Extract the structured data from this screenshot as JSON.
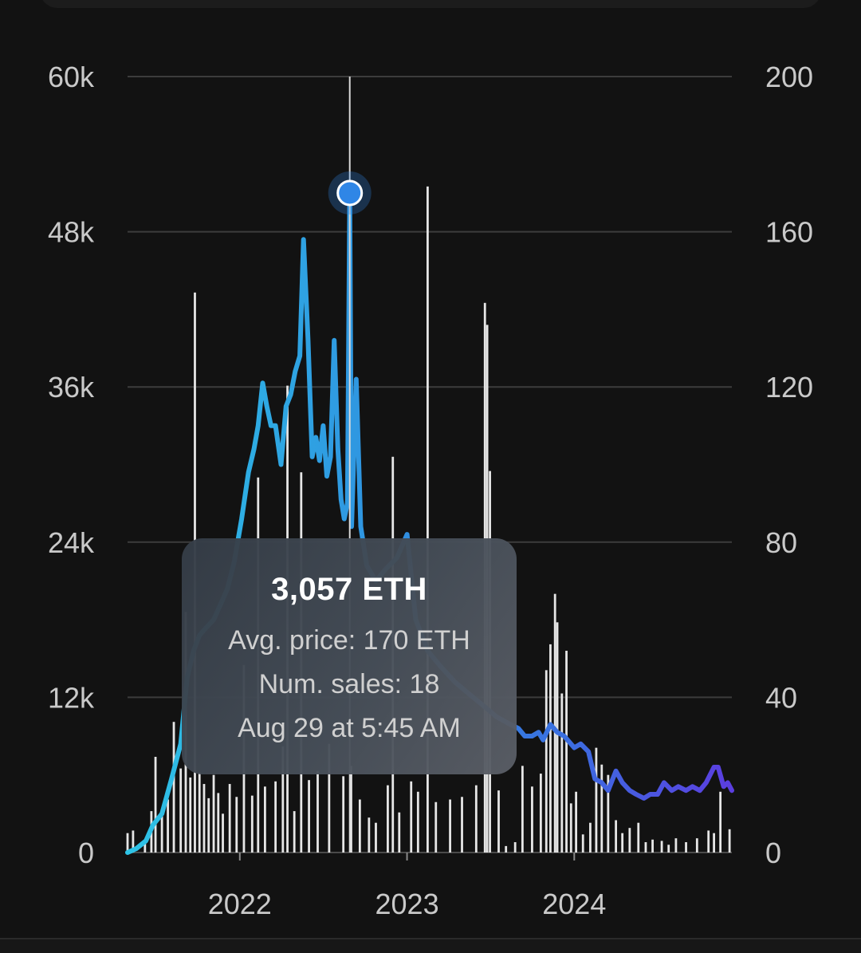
{
  "chart_data": {
    "type": "line",
    "title": "",
    "xlabel": "",
    "ylabel": "",
    "x_range": [
      "2021-05-01",
      "2024-12-10"
    ],
    "x_ticks": [
      {
        "label": "2022",
        "date": "2022-01-01"
      },
      {
        "label": "2023",
        "date": "2023-01-01"
      },
      {
        "label": "2024",
        "date": "2024-01-01"
      }
    ],
    "y_left": {
      "ticks": [
        "0",
        "12k",
        "24k",
        "36k",
        "48k",
        "60k"
      ],
      "ylim": [
        0,
        60000
      ]
    },
    "y_right": {
      "ticks": [
        "0",
        "40",
        "80",
        "120",
        "160",
        "200"
      ],
      "ylim": [
        0,
        200
      ]
    },
    "grid": true,
    "legend": "none",
    "colors": {
      "background": "#121212",
      "grid": "#3c3c3c",
      "bars": "#e6e6e6",
      "line_start": "#2ec4e6",
      "line_mid": "#2f8fe0",
      "line_end": "#5b3ee0",
      "highlight": "#2f86e6"
    },
    "series": [
      {
        "type": "line",
        "axis": "right",
        "points": [
          [
            "2021-05-01",
            0
          ],
          [
            "2021-05-20",
            1
          ],
          [
            "2021-06-10",
            3
          ],
          [
            "2021-06-25",
            7
          ],
          [
            "2021-07-15",
            10
          ],
          [
            "2021-08-05",
            19
          ],
          [
            "2021-08-25",
            28
          ],
          [
            "2021-09-08",
            45
          ],
          [
            "2021-09-22",
            52
          ],
          [
            "2021-10-05",
            56
          ],
          [
            "2021-10-20",
            58
          ],
          [
            "2021-11-05",
            60
          ],
          [
            "2021-11-20",
            64
          ],
          [
            "2021-12-05",
            68
          ],
          [
            "2021-12-20",
            75
          ],
          [
            "2022-01-05",
            86
          ],
          [
            "2022-01-20",
            98
          ],
          [
            "2022-02-01",
            104
          ],
          [
            "2022-02-10",
            110
          ],
          [
            "2022-02-20",
            121
          ],
          [
            "2022-03-01",
            115
          ],
          [
            "2022-03-10",
            110
          ],
          [
            "2022-03-20",
            110
          ],
          [
            "2022-04-01",
            100
          ],
          [
            "2022-04-12",
            115
          ],
          [
            "2022-04-22",
            118
          ],
          [
            "2022-05-02",
            124
          ],
          [
            "2022-05-12",
            128
          ],
          [
            "2022-05-20",
            158
          ],
          [
            "2022-05-30",
            132
          ],
          [
            "2022-06-08",
            102
          ],
          [
            "2022-06-16",
            107
          ],
          [
            "2022-06-24",
            101
          ],
          [
            "2022-07-02",
            110
          ],
          [
            "2022-07-10",
            97
          ],
          [
            "2022-07-18",
            102
          ],
          [
            "2022-07-26",
            132
          ],
          [
            "2022-08-03",
            104
          ],
          [
            "2022-08-10",
            91
          ],
          [
            "2022-08-17",
            86
          ],
          [
            "2022-08-24",
            90
          ],
          [
            "2022-08-29",
            170
          ],
          [
            "2022-09-02",
            84
          ],
          [
            "2022-09-12",
            122
          ],
          [
            "2022-09-22",
            84
          ],
          [
            "2022-10-05",
            74
          ],
          [
            "2022-10-25",
            70
          ],
          [
            "2022-11-15",
            73
          ],
          [
            "2022-12-10",
            76
          ],
          [
            "2023-01-01",
            82
          ],
          [
            "2023-01-20",
            60
          ],
          [
            "2023-02-15",
            52
          ],
          [
            "2023-03-15",
            48
          ],
          [
            "2023-04-15",
            44
          ],
          [
            "2023-05-15",
            41
          ],
          [
            "2023-06-15",
            38
          ],
          [
            "2023-07-15",
            35
          ],
          [
            "2023-08-15",
            33
          ],
          [
            "2023-09-01",
            32
          ],
          [
            "2023-09-15",
            30
          ],
          [
            "2023-10-01",
            30
          ],
          [
            "2023-10-15",
            31
          ],
          [
            "2023-10-25",
            29
          ],
          [
            "2023-11-10",
            33
          ],
          [
            "2023-11-25",
            31
          ],
          [
            "2023-12-10",
            30
          ],
          [
            "2024-01-01",
            27
          ],
          [
            "2024-01-15",
            28
          ],
          [
            "2024-02-01",
            26
          ],
          [
            "2024-02-15",
            19
          ],
          [
            "2024-03-01",
            18
          ],
          [
            "2024-03-15",
            16
          ],
          [
            "2024-04-01",
            21
          ],
          [
            "2024-04-15",
            18
          ],
          [
            "2024-05-01",
            16
          ],
          [
            "2024-05-15",
            15
          ],
          [
            "2024-06-01",
            14
          ],
          [
            "2024-06-15",
            15
          ],
          [
            "2024-07-01",
            15
          ],
          [
            "2024-07-15",
            18
          ],
          [
            "2024-08-01",
            16
          ],
          [
            "2024-08-15",
            17
          ],
          [
            "2024-09-01",
            16
          ],
          [
            "2024-09-15",
            17
          ],
          [
            "2024-10-01",
            16
          ],
          [
            "2024-10-15",
            18
          ],
          [
            "2024-11-01",
            22
          ],
          [
            "2024-11-10",
            22
          ],
          [
            "2024-11-22",
            17
          ],
          [
            "2024-12-01",
            18
          ],
          [
            "2024-12-10",
            16
          ]
        ]
      },
      {
        "type": "bar",
        "axis": "left",
        "points": [
          [
            "2021-05-01",
            1500
          ],
          [
            "2021-05-13",
            1700
          ],
          [
            "2021-06-08",
            800
          ],
          [
            "2021-06-22",
            3200
          ],
          [
            "2021-07-01",
            7400
          ],
          [
            "2021-07-15",
            3000
          ],
          [
            "2021-07-28",
            4100
          ],
          [
            "2021-08-10",
            10100
          ],
          [
            "2021-08-25",
            6500
          ],
          [
            "2021-09-05",
            18600
          ],
          [
            "2021-09-15",
            5800
          ],
          [
            "2021-09-25",
            43300
          ],
          [
            "2021-10-05",
            6200
          ],
          [
            "2021-10-15",
            5300
          ],
          [
            "2021-10-25",
            4200
          ],
          [
            "2021-11-05",
            6000
          ],
          [
            "2021-11-15",
            4600
          ],
          [
            "2021-11-25",
            3000
          ],
          [
            "2021-12-10",
            5300
          ],
          [
            "2021-12-25",
            4300
          ],
          [
            "2022-01-10",
            14500
          ],
          [
            "2022-01-28",
            4400
          ],
          [
            "2022-02-10",
            29000
          ],
          [
            "2022-02-25",
            5100
          ],
          [
            "2022-03-20",
            5500
          ],
          [
            "2022-04-05",
            8200
          ],
          [
            "2022-04-15",
            36100
          ],
          [
            "2022-04-30",
            3200
          ],
          [
            "2022-05-15",
            29400
          ],
          [
            "2022-06-01",
            5600
          ],
          [
            "2022-06-20",
            6300
          ],
          [
            "2022-07-15",
            8400
          ],
          [
            "2022-08-15",
            5900
          ],
          [
            "2022-09-01",
            6700
          ],
          [
            "2022-09-20",
            4100
          ],
          [
            "2022-10-10",
            2700
          ],
          [
            "2022-10-25",
            2300
          ],
          [
            "2022-11-20",
            5200
          ],
          [
            "2022-12-01",
            30600
          ],
          [
            "2022-12-15",
            3100
          ],
          [
            "2023-01-10",
            5500
          ],
          [
            "2023-01-25",
            4700
          ],
          [
            "2023-02-15",
            51500
          ],
          [
            "2023-03-05",
            3900
          ],
          [
            "2023-04-05",
            4100
          ],
          [
            "2023-05-01",
            4300
          ],
          [
            "2023-06-01",
            5200
          ],
          [
            "2023-06-20",
            42500
          ],
          [
            "2023-06-25",
            40800
          ],
          [
            "2023-07-01",
            29500
          ],
          [
            "2023-07-20",
            4800
          ],
          [
            "2023-08-05",
            500
          ],
          [
            "2023-08-25",
            800
          ],
          [
            "2023-09-10",
            6700
          ],
          [
            "2023-10-01",
            5100
          ],
          [
            "2023-10-20",
            6100
          ],
          [
            "2023-11-01",
            14100
          ],
          [
            "2023-11-10",
            16100
          ],
          [
            "2023-11-20",
            20000
          ],
          [
            "2023-11-25",
            17800
          ],
          [
            "2023-12-05",
            12300
          ],
          [
            "2023-12-15",
            15600
          ],
          [
            "2023-12-25",
            3800
          ],
          [
            "2024-01-05",
            4700
          ],
          [
            "2024-01-20",
            1400
          ],
          [
            "2024-02-05",
            2300
          ],
          [
            "2024-02-18",
            8100
          ],
          [
            "2024-03-01",
            6800
          ],
          [
            "2024-03-15",
            6000
          ],
          [
            "2024-04-01",
            2500
          ],
          [
            "2024-04-15",
            1500
          ],
          [
            "2024-05-01",
            1900
          ],
          [
            "2024-05-20",
            2300
          ],
          [
            "2024-06-05",
            800
          ],
          [
            "2024-06-20",
            1000
          ],
          [
            "2024-07-10",
            900
          ],
          [
            "2024-07-25",
            600
          ],
          [
            "2024-08-10",
            1100
          ],
          [
            "2024-09-01",
            800
          ],
          [
            "2024-09-25",
            1100
          ],
          [
            "2024-10-20",
            1700
          ],
          [
            "2024-11-01",
            1500
          ],
          [
            "2024-11-15",
            4700
          ],
          [
            "2024-12-05",
            1800
          ]
        ]
      }
    ],
    "highlight": {
      "x": "2022-08-29",
      "y_right": 170
    }
  },
  "tooltip": {
    "headline": "3,057 ETH",
    "avg_price": "Avg. price: 170 ETH",
    "num_sales": "Num. sales: 18",
    "timestamp": "Aug 29 at 5:45 AM"
  }
}
